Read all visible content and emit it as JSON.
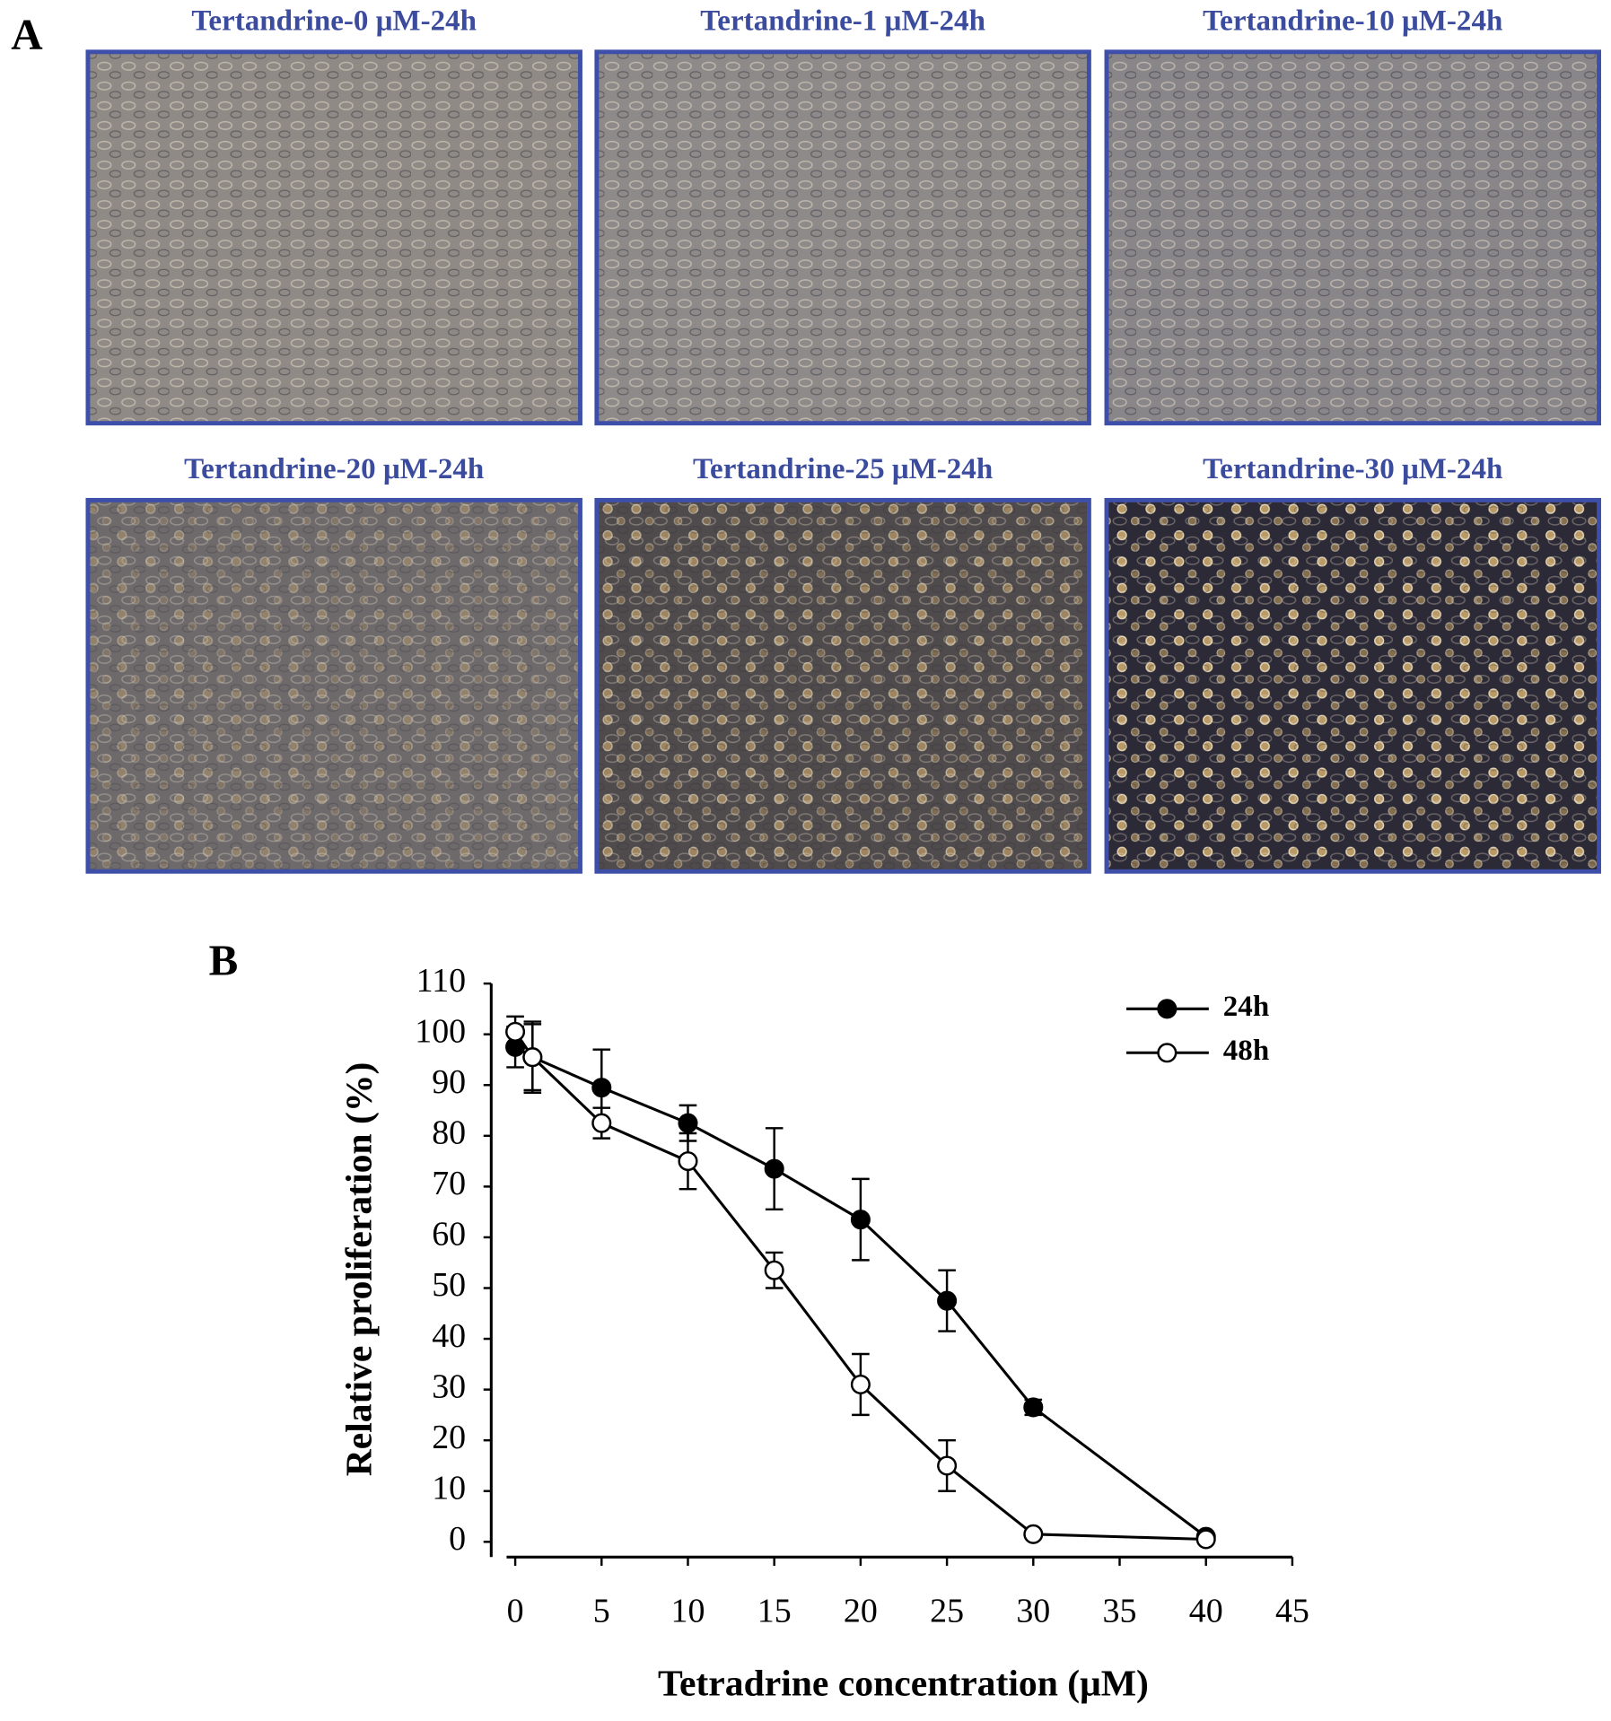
{
  "panel_a": {
    "label": "A",
    "images": [
      {
        "title": "Tertandrine-0 μM-24h"
      },
      {
        "title": "Tertandrine-1 μM-24h"
      },
      {
        "title": "Tertandrine-10 μM-24h"
      },
      {
        "title": "Tertandrine-20 μM-24h"
      },
      {
        "title": "Tertandrine-25 μM-24h"
      },
      {
        "title": "Tertandrine-30 μM-24h"
      }
    ]
  },
  "panel_b": {
    "label": "B"
  },
  "chart_data": {
    "type": "line",
    "x_label": "Tetradrine concentration (μM)",
    "y_label": "Relative proliferation (%)",
    "x": [
      0,
      1,
      5,
      10,
      15,
      20,
      25,
      30,
      40
    ],
    "series": [
      {
        "name": "24h",
        "color": "#000000",
        "marker_fill": "#000000",
        "values": [
          97.5,
          95.5,
          89.5,
          82.5,
          73.5,
          63.5,
          47.5,
          26.5,
          1
        ],
        "errors": [
          4,
          7,
          7.5,
          3.5,
          8,
          8,
          6,
          1.5,
          0.5
        ]
      },
      {
        "name": "48h",
        "color": "#000000",
        "marker_fill": "#ffffff",
        "values": [
          100.5,
          95.5,
          82.5,
          75,
          53.5,
          31,
          15,
          1.5,
          0.5
        ],
        "errors": [
          3,
          6.5,
          3,
          5.5,
          3.5,
          6,
          5,
          0.5,
          0.5
        ]
      }
    ],
    "xlim": [
      -0.5,
      45
    ],
    "ylim": [
      -3,
      110
    ],
    "xticks": [
      0,
      5,
      10,
      15,
      20,
      25,
      30,
      35,
      40,
      45
    ],
    "yticks": [
      0,
      10,
      20,
      30,
      40,
      50,
      60,
      70,
      80,
      90,
      100,
      110
    ],
    "legend": "upper right",
    "grid": false
  }
}
